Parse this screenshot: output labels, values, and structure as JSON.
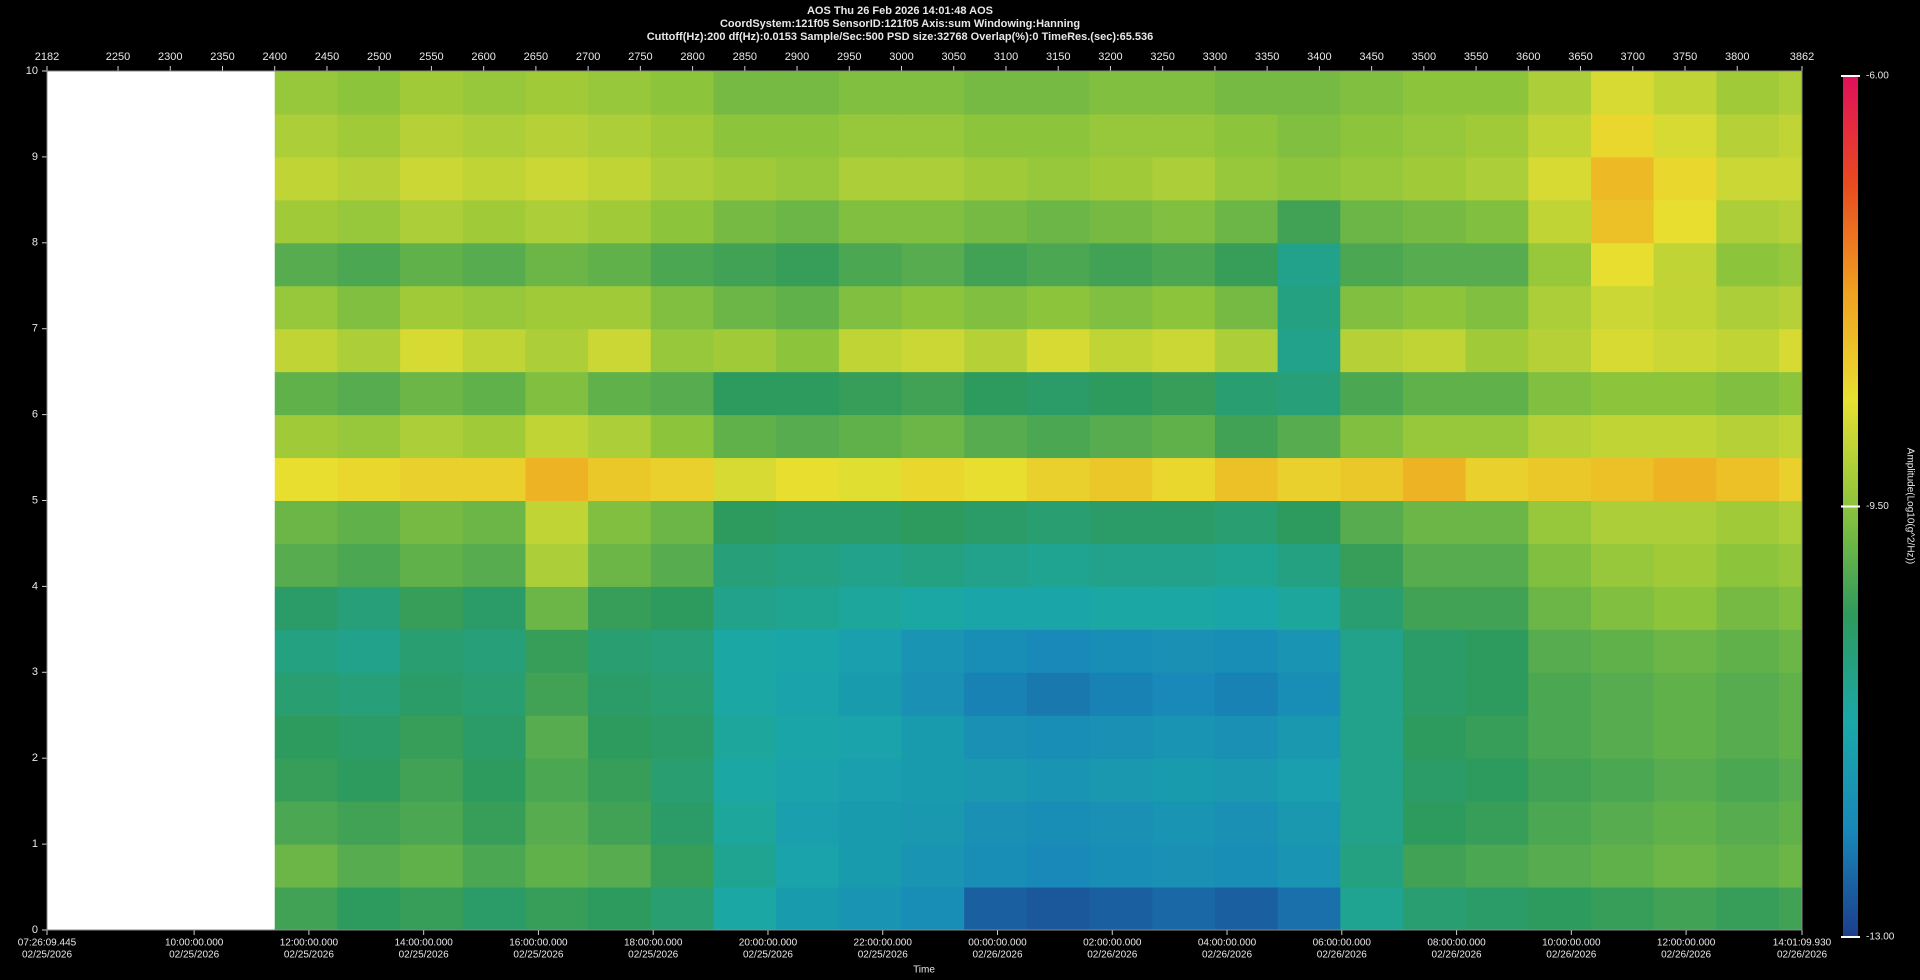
{
  "chart_data": {
    "type": "heatmap",
    "title": "AOS  Thu 26 Feb 2026 14:01:48  AOS",
    "subtitles": [
      "CoordSystem:121f05   SensorID:121f05   Axis:sum   Windowing:Hanning",
      "Cuttoff(Hz):200     df(Hz):0.0153     Sample/Sec:500     PSD size:32768     Overlap(%):0     TimeRes.(sec):65.536"
    ],
    "xlabel": "Time",
    "colorbar_label": "Amplitude(Log10(g^2/Hz))",
    "xlim": [
      2182,
      3862
    ],
    "xticks": [
      2182,
      2250,
      2300,
      2350,
      2400,
      2450,
      2500,
      2550,
      2600,
      2650,
      2700,
      2750,
      2800,
      2850,
      2900,
      2950,
      3000,
      3050,
      3100,
      3150,
      3200,
      3250,
      3300,
      3350,
      3400,
      3450,
      3500,
      3550,
      3600,
      3650,
      3700,
      3750,
      3800,
      3862
    ],
    "x2ticks": [
      {
        "value": 2182,
        "label": "07:26:09.445",
        "date": "02/25/2026"
      },
      {
        "value": 2322.85,
        "label": "10:00:00.000",
        "date": "02/25/2026"
      },
      {
        "value": 2432.71,
        "label": "12:00:00.000",
        "date": "02/25/2026"
      },
      {
        "value": 2542.57,
        "label": "14:00:00.000",
        "date": "02/25/2026"
      },
      {
        "value": 2652.44,
        "label": "16:00:00.000",
        "date": "02/25/2026"
      },
      {
        "value": 2762.3,
        "label": "18:00:00.000",
        "date": "02/25/2026"
      },
      {
        "value": 2872.16,
        "label": "20:00:00.000",
        "date": "02/25/2026"
      },
      {
        "value": 2982.02,
        "label": "22:00:00.000",
        "date": "02/25/2026"
      },
      {
        "value": 3091.88,
        "label": "00:00:00.000",
        "date": "02/26/2026"
      },
      {
        "value": 3201.74,
        "label": "02:00:00.000",
        "date": "02/26/2026"
      },
      {
        "value": 3311.61,
        "label": "04:00:00.000",
        "date": "02/26/2026"
      },
      {
        "value": 3421.47,
        "label": "06:00:00.000",
        "date": "02/26/2026"
      },
      {
        "value": 3531.33,
        "label": "08:00:00.000",
        "date": "02/26/2026"
      },
      {
        "value": 3641.19,
        "label": "10:00:00.000",
        "date": "02/26/2026"
      },
      {
        "value": 3751.05,
        "label": "12:00:00.000",
        "date": "02/26/2026"
      },
      {
        "value": 3862,
        "label": "14:01:09.930",
        "date": "02/26/2026"
      }
    ],
    "ylim": [
      0,
      10
    ],
    "yticks": [
      0,
      1,
      2,
      3,
      4,
      5,
      6,
      7,
      8,
      9,
      10
    ],
    "x_bins": [
      2182,
      2400,
      2460,
      2520,
      2580,
      2640,
      2700,
      2760,
      2820,
      2880,
      2940,
      3000,
      3060,
      3120,
      3180,
      3240,
      3300,
      3360,
      3420,
      3480,
      3540,
      3600,
      3660,
      3720,
      3780,
      3840,
      3862
    ],
    "y_bins": [
      0,
      0.5,
      1,
      1.5,
      2,
      2.5,
      3,
      3.5,
      4,
      4.5,
      5,
      5.5,
      6,
      6.5,
      7,
      7.5,
      8,
      8.5,
      9,
      9.5,
      10
    ],
    "values": [
      [
        null,
        -10.2,
        -10.4,
        -10.3,
        -10.5,
        -10.3,
        -10.4,
        -10.6,
        -11.2,
        -11.6,
        -11.8,
        -12.0,
        -12.6,
        -12.7,
        -12.6,
        -12.5,
        -12.6,
        -12.4,
        -11.0,
        -10.6,
        -10.5,
        -10.4,
        -10.3,
        -10.2,
        -10.3,
        -10.2
      ],
      [
        null,
        -9.8,
        -10.0,
        -9.9,
        -10.1,
        -9.9,
        -10.0,
        -10.3,
        -11.0,
        -11.4,
        -11.6,
        -11.8,
        -12.0,
        -12.1,
        -12.0,
        -11.9,
        -12.0,
        -11.8,
        -10.8,
        -10.2,
        -10.1,
        -10.0,
        -9.9,
        -9.8,
        -9.9,
        -9.8
      ],
      [
        null,
        -10.1,
        -10.2,
        -10.1,
        -10.3,
        -10.0,
        -10.2,
        -10.5,
        -11.1,
        -11.5,
        -11.6,
        -11.7,
        -11.9,
        -12.0,
        -11.9,
        -11.8,
        -11.9,
        -11.7,
        -10.9,
        -10.4,
        -10.3,
        -10.1,
        -10.0,
        -9.9,
        -10.0,
        -9.9
      ],
      [
        null,
        -10.3,
        -10.4,
        -10.2,
        -10.4,
        -10.1,
        -10.3,
        -10.6,
        -11.2,
        -11.4,
        -11.5,
        -11.6,
        -11.7,
        -11.8,
        -11.7,
        -11.6,
        -11.7,
        -11.5,
        -10.9,
        -10.5,
        -10.4,
        -10.2,
        -10.1,
        -10.0,
        -10.1,
        -10.0
      ],
      [
        null,
        -10.4,
        -10.5,
        -10.3,
        -10.5,
        -10.0,
        -10.4,
        -10.5,
        -11.1,
        -11.3,
        -11.4,
        -11.6,
        -11.9,
        -12.0,
        -11.9,
        -11.8,
        -11.9,
        -11.7,
        -10.9,
        -10.4,
        -10.3,
        -10.1,
        -10.0,
        -9.9,
        -10.0,
        -9.9
      ],
      [
        null,
        -10.6,
        -10.7,
        -10.5,
        -10.6,
        -10.2,
        -10.5,
        -10.6,
        -11.2,
        -11.4,
        -11.6,
        -11.9,
        -12.2,
        -12.3,
        -12.2,
        -12.1,
        -12.2,
        -12.0,
        -10.9,
        -10.5,
        -10.4,
        -10.1,
        -10.0,
        -9.9,
        -10.0,
        -9.9
      ],
      [
        null,
        -10.8,
        -10.9,
        -10.6,
        -10.7,
        -10.3,
        -10.6,
        -10.7,
        -11.2,
        -11.3,
        -11.5,
        -11.8,
        -12.0,
        -12.1,
        -12.0,
        -11.9,
        -12.0,
        -11.8,
        -10.9,
        -10.5,
        -10.4,
        -10.0,
        -9.9,
        -9.8,
        -9.9,
        -9.8
      ],
      [
        null,
        -10.5,
        -10.7,
        -10.3,
        -10.5,
        -9.8,
        -10.3,
        -10.4,
        -10.9,
        -11.0,
        -11.1,
        -11.2,
        -11.3,
        -11.3,
        -11.2,
        -11.2,
        -11.3,
        -11.1,
        -10.6,
        -10.2,
        -10.2,
        -9.8,
        -9.6,
        -9.5,
        -9.7,
        -9.6
      ],
      [
        null,
        -10.0,
        -10.1,
        -9.9,
        -10.0,
        -9.2,
        -9.8,
        -10.0,
        -10.7,
        -10.8,
        -10.9,
        -10.8,
        -10.9,
        -11.0,
        -10.9,
        -10.9,
        -11.0,
        -10.8,
        -10.3,
        -10.0,
        -10.0,
        -9.6,
        -9.4,
        -9.3,
        -9.5,
        -9.4
      ],
      [
        null,
        -9.8,
        -9.9,
        -9.7,
        -9.8,
        -9.0,
        -9.6,
        -9.8,
        -10.4,
        -10.5,
        -10.5,
        -10.4,
        -10.5,
        -10.6,
        -10.5,
        -10.5,
        -10.6,
        -10.4,
        -10.0,
        -9.8,
        -9.8,
        -9.4,
        -9.2,
        -9.2,
        -9.3,
        -9.2
      ],
      [
        null,
        -8.6,
        -8.5,
        -8.4,
        -8.4,
        -8.0,
        -8.3,
        -8.4,
        -8.8,
        -8.6,
        -8.7,
        -8.5,
        -8.6,
        -8.4,
        -8.3,
        -8.5,
        -8.2,
        -8.4,
        -8.3,
        -8.0,
        -8.4,
        -8.3,
        -8.2,
        -8.0,
        -8.2,
        -8.4
      ],
      [
        null,
        -9.3,
        -9.4,
        -9.2,
        -9.3,
        -9.0,
        -9.2,
        -9.5,
        -9.9,
        -10.0,
        -9.9,
        -9.8,
        -10.0,
        -10.1,
        -10.0,
        -9.9,
        -10.2,
        -10.0,
        -9.6,
        -9.4,
        -9.4,
        -9.1,
        -9.0,
        -9.0,
        -9.1,
        -9.0
      ],
      [
        null,
        -9.9,
        -10.0,
        -9.8,
        -9.9,
        -9.6,
        -9.9,
        -10.0,
        -10.4,
        -10.4,
        -10.3,
        -10.2,
        -10.4,
        -10.5,
        -10.4,
        -10.3,
        -10.6,
        -10.7,
        -10.1,
        -9.9,
        -9.9,
        -9.6,
        -9.5,
        -9.5,
        -9.6,
        -9.5
      ],
      [
        null,
        -9.0,
        -9.2,
        -8.8,
        -9.0,
        -9.2,
        -8.9,
        -9.4,
        -9.3,
        -9.5,
        -9.0,
        -8.9,
        -9.1,
        -8.8,
        -9.0,
        -8.9,
        -9.2,
        -10.9,
        -9.1,
        -9.0,
        -9.3,
        -9.1,
        -8.8,
        -8.9,
        -9.0,
        -8.8
      ],
      [
        null,
        -9.4,
        -9.6,
        -9.3,
        -9.4,
        -9.3,
        -9.3,
        -9.6,
        -9.8,
        -9.9,
        -9.6,
        -9.5,
        -9.6,
        -9.5,
        -9.6,
        -9.5,
        -9.7,
        -10.8,
        -9.6,
        -9.5,
        -9.6,
        -9.2,
        -8.9,
        -9.0,
        -9.2,
        -9.1
      ],
      [
        null,
        -10.0,
        -10.1,
        -9.9,
        -10.0,
        -9.8,
        -9.9,
        -10.1,
        -10.2,
        -10.3,
        -10.1,
        -10.0,
        -10.2,
        -10.1,
        -10.2,
        -10.1,
        -10.3,
        -10.9,
        -10.1,
        -10.0,
        -10.0,
        -9.4,
        -8.6,
        -9.0,
        -9.5,
        -9.4
      ],
      [
        null,
        -9.3,
        -9.4,
        -9.2,
        -9.3,
        -9.2,
        -9.3,
        -9.5,
        -9.7,
        -9.8,
        -9.6,
        -9.6,
        -9.7,
        -9.8,
        -9.7,
        -9.6,
        -9.8,
        -10.2,
        -9.8,
        -9.7,
        -9.6,
        -9.0,
        -8.2,
        -8.6,
        -9.2,
        -9.1
      ],
      [
        null,
        -9.0,
        -9.1,
        -8.9,
        -9.0,
        -8.9,
        -9.0,
        -9.2,
        -9.3,
        -9.4,
        -9.2,
        -9.2,
        -9.3,
        -9.4,
        -9.3,
        -9.2,
        -9.4,
        -9.5,
        -9.4,
        -9.3,
        -9.2,
        -8.8,
        -8.1,
        -8.5,
        -8.9,
        -8.9
      ],
      [
        null,
        -9.2,
        -9.3,
        -9.1,
        -9.2,
        -9.1,
        -9.2,
        -9.3,
        -9.5,
        -9.5,
        -9.4,
        -9.4,
        -9.5,
        -9.5,
        -9.4,
        -9.4,
        -9.5,
        -9.6,
        -9.5,
        -9.4,
        -9.3,
        -9.0,
        -8.5,
        -8.8,
        -9.1,
        -9.0
      ],
      [
        null,
        -9.4,
        -9.5,
        -9.3,
        -9.4,
        -9.3,
        -9.4,
        -9.5,
        -9.7,
        -9.7,
        -9.6,
        -9.6,
        -9.7,
        -9.7,
        -9.6,
        -9.6,
        -9.7,
        -9.7,
        -9.6,
        -9.5,
        -9.5,
        -9.2,
        -8.8,
        -9.0,
        -9.3,
        -9.2
      ]
    ],
    "zlim": [
      -13,
      -6
    ],
    "zticks": [
      {
        "value": -6,
        "label": "-6.00"
      },
      {
        "value": -9.5,
        "label": "-9.50"
      },
      {
        "value": -13,
        "label": "-13.00"
      }
    ],
    "colormap": [
      "#1c3d8c",
      "#1888b8",
      "#1aa8a8",
      "#2e9a5c",
      "#8cc43c",
      "#e8e030",
      "#f0a020",
      "#e84a20",
      "#e0105a"
    ],
    "missing_color": "#ffffff"
  }
}
